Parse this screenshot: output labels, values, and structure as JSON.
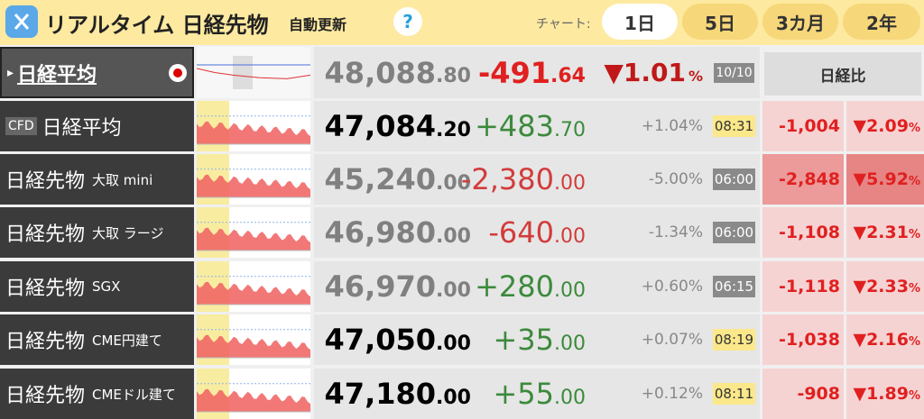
{
  "header": {
    "title": "リアルタイム 日経先物",
    "auto": "自動更新",
    "help": "?",
    "chart_label": "チャート:",
    "ranges": [
      "1日",
      "5日",
      "3カ月",
      "2年"
    ]
  },
  "index": {
    "name": "日経平均",
    "price_int": "48,088",
    "price_dec": ".80",
    "change_int": "-491",
    "change_dec": ".64",
    "pct_num": "▼1.01",
    "pct_unit": "%",
    "time": "10/10",
    "compare_header": "日経比"
  },
  "rows": [
    {
      "badge": "CFD",
      "name": "日経平均",
      "sub": "",
      "price_int": "47,084",
      "price_dec": ".20",
      "price_color": "#000000",
      "change_int": "+483",
      "change_dec": ".70",
      "change_color": "#3c8a3c",
      "pct": "+1.04%",
      "time": "08:31",
      "time_bg": "#fbe88a",
      "time_color": "#333333",
      "diff": "-1,004",
      "diff_pct": "▼2.09",
      "diff_unit": "%",
      "diff_bg": "#f6d3d3",
      "diff_pct_bg": "#f6d3d3"
    },
    {
      "badge": "",
      "name": "日経先物",
      "sub": "大取 mini",
      "price_int": "45,240",
      "price_dec": ".00",
      "price_color": "#808080",
      "change_int": "-2,380",
      "change_dec": ".00",
      "change_color": "#d23c3c",
      "pct": "-5.00%",
      "time": "06:00",
      "time_bg": "#8a8a8a",
      "time_color": "#ffffff",
      "diff": "-2,848",
      "diff_pct": "▼5.92",
      "diff_unit": "%",
      "diff_bg": "#ec9a9a",
      "diff_pct_bg": "#e78585"
    },
    {
      "badge": "",
      "name": "日経先物",
      "sub": "大取 ラージ",
      "price_int": "46,980",
      "price_dec": ".00",
      "price_color": "#808080",
      "change_int": "-640",
      "change_dec": ".00",
      "change_color": "#d23c3c",
      "pct": "-1.34%",
      "time": "06:00",
      "time_bg": "#8a8a8a",
      "time_color": "#ffffff",
      "diff": "-1,108",
      "diff_pct": "▼2.31",
      "diff_unit": "%",
      "diff_bg": "#f6d3d3",
      "diff_pct_bg": "#f6d3d3"
    },
    {
      "badge": "",
      "name": "日経先物",
      "sub": "SGX",
      "price_int": "46,970",
      "price_dec": ".00",
      "price_color": "#808080",
      "change_int": "+280",
      "change_dec": ".00",
      "change_color": "#3c8a3c",
      "pct": "+0.60%",
      "time": "06:15",
      "time_bg": "#8a8a8a",
      "time_color": "#ffffff",
      "diff": "-1,118",
      "diff_pct": "▼2.33",
      "diff_unit": "%",
      "diff_bg": "#f6d3d3",
      "diff_pct_bg": "#f6d3d3"
    },
    {
      "badge": "",
      "name": "日経先物",
      "sub": "CME円建て",
      "price_int": "47,050",
      "price_dec": ".00",
      "price_color": "#000000",
      "change_int": "+35",
      "change_dec": ".00",
      "change_color": "#3c8a3c",
      "pct": "+0.07%",
      "time": "08:19",
      "time_bg": "#fbe88a",
      "time_color": "#333333",
      "diff": "-1,038",
      "diff_pct": "▼2.16",
      "diff_unit": "%",
      "diff_bg": "#f6d3d3",
      "diff_pct_bg": "#f6d3d3"
    },
    {
      "badge": "",
      "name": "日経先物",
      "sub": "CMEドル建て",
      "price_int": "47,180",
      "price_dec": ".00",
      "price_color": "#000000",
      "change_int": "+55",
      "change_dec": ".00",
      "change_color": "#3c8a3c",
      "pct": "+0.12%",
      "time": "08:11",
      "time_bg": "#fbe88a",
      "time_color": "#333333",
      "diff": "-908",
      "diff_pct": "▼1.89",
      "diff_unit": "%",
      "diff_bg": "#f6d3d3",
      "diff_pct_bg": "#f6d3d3"
    }
  ]
}
